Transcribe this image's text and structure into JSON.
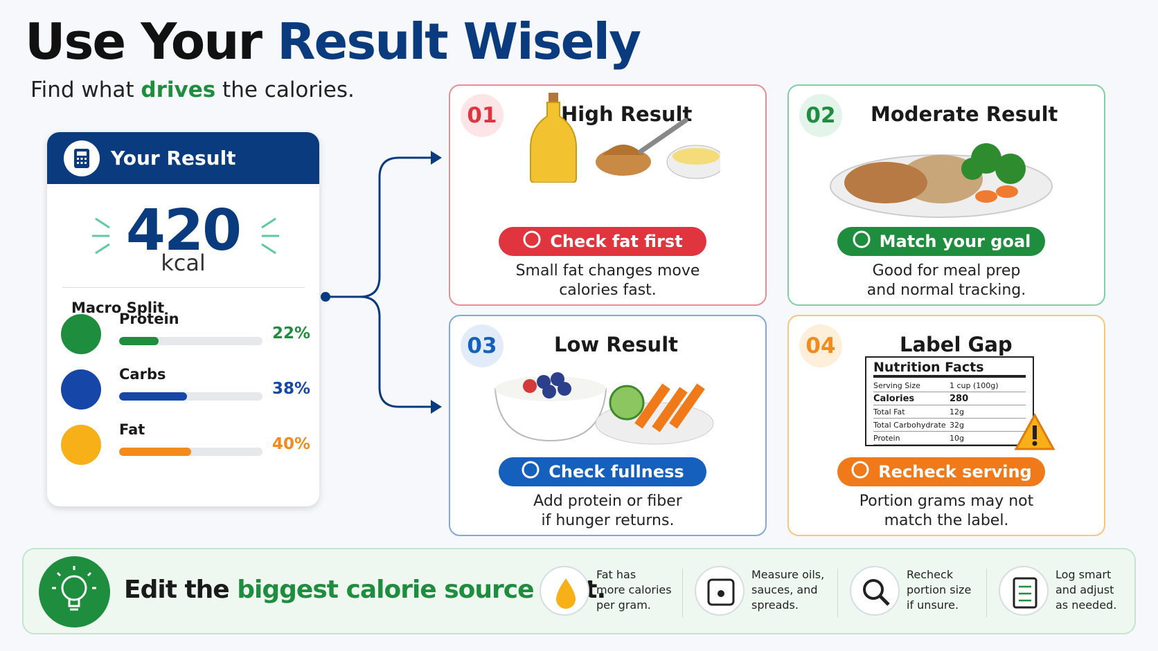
{
  "header": {
    "title_dark": "Use Your",
    "title_blue": "Result Wisely",
    "subtitle_before": "Find what",
    "subtitle_highlight": "drives",
    "subtitle_after": "the calories."
  },
  "result": {
    "heading": "Your Result",
    "value": "420",
    "unit": "kcal",
    "macro_heading": "Macro Split",
    "macros": [
      {
        "name": "Protein",
        "value": 22,
        "label": "22%"
      },
      {
        "name": "Carbs",
        "value": 38,
        "label": "38%"
      },
      {
        "name": "Fat",
        "value": 40,
        "label": "40%"
      }
    ]
  },
  "cards": [
    {
      "number": "01",
      "title": "High Result",
      "button": "Check fat first",
      "lines": [
        "Small fat changes move",
        "calories fast."
      ]
    },
    {
      "number": "02",
      "title": "Moderate Result",
      "button": "Match your goal",
      "lines": [
        "Good for meal prep",
        "and normal tracking."
      ]
    },
    {
      "number": "03",
      "title": "Low Result",
      "button": "Check fullness",
      "lines": [
        "Add protein or fiber",
        "if hunger returns."
      ]
    },
    {
      "number": "04",
      "title": "Label Gap",
      "button": "Recheck serving",
      "lines": [
        "Portion grams may not",
        "match the label."
      ]
    }
  ],
  "nutrition": {
    "title": "Nutrition Facts",
    "rows": [
      [
        "Serving Size",
        "1 cup (100g)"
      ],
      [
        "Calories",
        "280"
      ],
      [
        "Total Fat",
        "12g"
      ],
      [
        "Total Carbohydrate",
        "32g"
      ],
      [
        "Protein",
        "10g"
      ]
    ]
  },
  "footer": {
    "before": "Edit the",
    "highlight": "biggest calorie source",
    "after": "first.",
    "tips": [
      [
        "Fat has",
        "more calories",
        "per gram."
      ],
      [
        "Measure oils,",
        "sauces, and",
        "spreads."
      ],
      [
        "Recheck",
        "portion size",
        "if unsure."
      ],
      [
        "Log smart",
        "and adjust",
        "as needed."
      ]
    ]
  }
}
